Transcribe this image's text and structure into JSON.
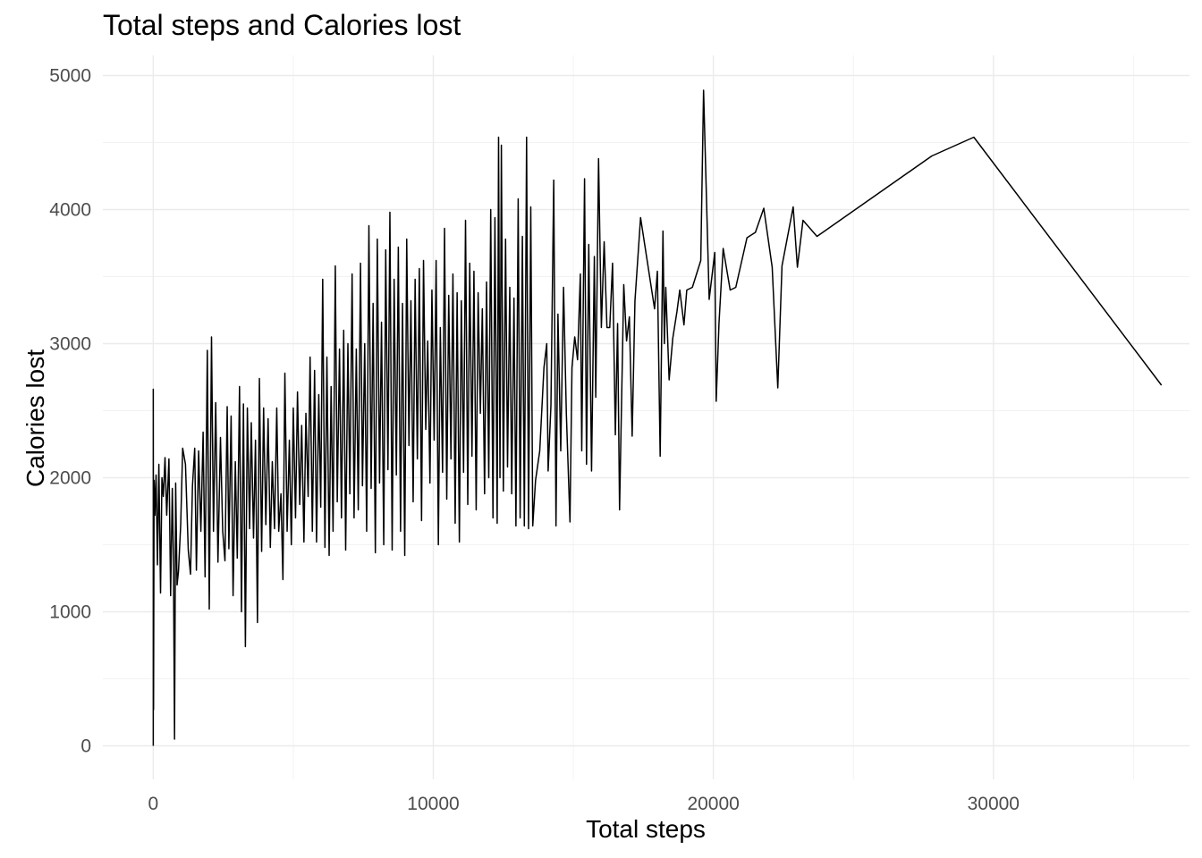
{
  "chart_data": {
    "type": "line",
    "title": "Total steps and Calories lost",
    "xlabel": "Total steps",
    "ylabel": "Calories lost",
    "xlim": [
      -1800,
      37000
    ],
    "ylim": [
      -250,
      5150
    ],
    "x_ticks": [
      0,
      10000,
      20000,
      30000
    ],
    "y_ticks": [
      0,
      1000,
      2000,
      3000,
      4000,
      5000
    ],
    "x_tick_labels": [
      "0",
      "10000",
      "20000",
      "30000"
    ],
    "y_tick_labels": [
      "0",
      "1000",
      "2000",
      "3000",
      "4000",
      "5000"
    ],
    "grid": true,
    "legend": "none",
    "line_color": "#000000",
    "series": [
      {
        "values": [
          [
            0,
            0
          ],
          [
            0,
            2660
          ],
          [
            10,
            270
          ],
          [
            30,
            1980
          ],
          [
            60,
            1720
          ],
          [
            100,
            2020
          ],
          [
            150,
            1350
          ],
          [
            200,
            2100
          ],
          [
            260,
            1140
          ],
          [
            310,
            2000
          ],
          [
            360,
            1860
          ],
          [
            420,
            2150
          ],
          [
            480,
            1720
          ],
          [
            560,
            2140
          ],
          [
            620,
            1120
          ],
          [
            680,
            1920
          ],
          [
            720,
            1400
          ],
          [
            760,
            50
          ],
          [
            800,
            1960
          ],
          [
            850,
            1200
          ],
          [
            900,
            1300
          ],
          [
            980,
            1650
          ],
          [
            1050,
            2220
          ],
          [
            1150,
            2100
          ],
          [
            1250,
            1460
          ],
          [
            1330,
            1280
          ],
          [
            1400,
            1940
          ],
          [
            1480,
            2220
          ],
          [
            1540,
            1310
          ],
          [
            1620,
            2200
          ],
          [
            1700,
            1600
          ],
          [
            1780,
            2340
          ],
          [
            1850,
            1260
          ],
          [
            1930,
            2950
          ],
          [
            2000,
            1020
          ],
          [
            2080,
            3050
          ],
          [
            2150,
            1600
          ],
          [
            2230,
            2560
          ],
          [
            2310,
            1370
          ],
          [
            2400,
            2300
          ],
          [
            2480,
            1600
          ],
          [
            2560,
            1380
          ],
          [
            2640,
            2530
          ],
          [
            2700,
            1470
          ],
          [
            2780,
            2460
          ],
          [
            2850,
            1120
          ],
          [
            2930,
            2120
          ],
          [
            3000,
            1400
          ],
          [
            3080,
            2680
          ],
          [
            3150,
            1000
          ],
          [
            3220,
            2550
          ],
          [
            3290,
            740
          ],
          [
            3360,
            2520
          ],
          [
            3440,
            1620
          ],
          [
            3500,
            2410
          ],
          [
            3580,
            1550
          ],
          [
            3650,
            2280
          ],
          [
            3720,
            920
          ],
          [
            3790,
            2740
          ],
          [
            3870,
            1450
          ],
          [
            3940,
            2520
          ],
          [
            4020,
            1650
          ],
          [
            4100,
            2440
          ],
          [
            4180,
            1480
          ],
          [
            4250,
            2120
          ],
          [
            4330,
            1620
          ],
          [
            4410,
            2520
          ],
          [
            4480,
            1600
          ],
          [
            4560,
            1880
          ],
          [
            4630,
            1240
          ],
          [
            4700,
            2780
          ],
          [
            4780,
            1600
          ],
          [
            4860,
            2280
          ],
          [
            4930,
            1500
          ],
          [
            5000,
            2520
          ],
          [
            5080,
            1700
          ],
          [
            5150,
            2640
          ],
          [
            5230,
            1800
          ],
          [
            5300,
            2390
          ],
          [
            5380,
            1520
          ],
          [
            5450,
            2480
          ],
          [
            5530,
            1860
          ],
          [
            5600,
            2900
          ],
          [
            5680,
            1600
          ],
          [
            5760,
            2800
          ],
          [
            5830,
            1520
          ],
          [
            5910,
            2620
          ],
          [
            5980,
            1780
          ],
          [
            6050,
            3480
          ],
          [
            6130,
            1480
          ],
          [
            6200,
            2900
          ],
          [
            6280,
            1420
          ],
          [
            6350,
            2680
          ],
          [
            6420,
            1600
          ],
          [
            6500,
            3580
          ],
          [
            6570,
            1820
          ],
          [
            6650,
            2960
          ],
          [
            6720,
            1700
          ],
          [
            6800,
            3100
          ],
          [
            6870,
            1460
          ],
          [
            6950,
            3000
          ],
          [
            7020,
            1880
          ],
          [
            7100,
            3520
          ],
          [
            7170,
            1700
          ],
          [
            7250,
            2960
          ],
          [
            7320,
            1760
          ],
          [
            7400,
            3600
          ],
          [
            7470,
            1940
          ],
          [
            7550,
            3000
          ],
          [
            7620,
            1600
          ],
          [
            7700,
            3880
          ],
          [
            7780,
            1920
          ],
          [
            7850,
            3300
          ],
          [
            7930,
            1440
          ],
          [
            8000,
            3780
          ],
          [
            8080,
            1960
          ],
          [
            8150,
            3160
          ],
          [
            8230,
            1500
          ],
          [
            8300,
            3700
          ],
          [
            8380,
            2060
          ],
          [
            8450,
            3980
          ],
          [
            8530,
            1460
          ],
          [
            8600,
            3480
          ],
          [
            8680,
            2020
          ],
          [
            8750,
            3720
          ],
          [
            8830,
            1600
          ],
          [
            8900,
            3300
          ],
          [
            8980,
            1420
          ],
          [
            9050,
            3780
          ],
          [
            9130,
            2240
          ],
          [
            9200,
            3320
          ],
          [
            9280,
            1820
          ],
          [
            9350,
            3480
          ],
          [
            9430,
            2140
          ],
          [
            9500,
            3560
          ],
          [
            9580,
            1680
          ],
          [
            9650,
            3620
          ],
          [
            9730,
            2360
          ],
          [
            9800,
            3020
          ],
          [
            9880,
            1960
          ],
          [
            9950,
            3400
          ],
          [
            10030,
            2280
          ],
          [
            10100,
            3620
          ],
          [
            10180,
            1500
          ],
          [
            10250,
            3120
          ],
          [
            10330,
            2040
          ],
          [
            10400,
            3860
          ],
          [
            10480,
            1840
          ],
          [
            10550,
            3360
          ],
          [
            10630,
            2140
          ],
          [
            10700,
            3520
          ],
          [
            10780,
            1660
          ],
          [
            10850,
            3380
          ],
          [
            10930,
            1520
          ],
          [
            11000,
            3320
          ],
          [
            11080,
            2040
          ],
          [
            11150,
            3920
          ],
          [
            11230,
            1800
          ],
          [
            11300,
            3600
          ],
          [
            11380,
            2160
          ],
          [
            11450,
            3540
          ],
          [
            11530,
            1760
          ],
          [
            11600,
            3380
          ],
          [
            11680,
            2480
          ],
          [
            11750,
            3260
          ],
          [
            11830,
            1880
          ],
          [
            11900,
            3460
          ],
          [
            11980,
            2000
          ],
          [
            12050,
            4000
          ],
          [
            12130,
            1700
          ],
          [
            12200,
            3940
          ],
          [
            12280,
            1660
          ],
          [
            12330,
            4540
          ],
          [
            12380,
            2000
          ],
          [
            12430,
            4480
          ],
          [
            12500,
            1900
          ],
          [
            12580,
            3780
          ],
          [
            12650,
            2080
          ],
          [
            12730,
            3420
          ],
          [
            12800,
            1880
          ],
          [
            12880,
            3340
          ],
          [
            12950,
            1640
          ],
          [
            13030,
            4080
          ],
          [
            13100,
            1700
          ],
          [
            13180,
            3800
          ],
          [
            13250,
            1640
          ],
          [
            13330,
            4540
          ],
          [
            13400,
            1620
          ],
          [
            13480,
            4020
          ],
          [
            13550,
            1640
          ],
          [
            13650,
            1980
          ],
          [
            13800,
            2200
          ],
          [
            13950,
            2820
          ],
          [
            14050,
            3000
          ],
          [
            14100,
            2050
          ],
          [
            14200,
            2540
          ],
          [
            14300,
            4220
          ],
          [
            14380,
            1640
          ],
          [
            14450,
            3220
          ],
          [
            14550,
            2200
          ],
          [
            14650,
            3420
          ],
          [
            14750,
            2480
          ],
          [
            14880,
            1670
          ],
          [
            14950,
            2820
          ],
          [
            15050,
            3050
          ],
          [
            15150,
            2880
          ],
          [
            15250,
            3520
          ],
          [
            15300,
            2200
          ],
          [
            15400,
            4230
          ],
          [
            15470,
            2100
          ],
          [
            15550,
            3740
          ],
          [
            15650,
            2050
          ],
          [
            15750,
            3650
          ],
          [
            15800,
            2600
          ],
          [
            15900,
            4380
          ],
          [
            16000,
            3120
          ],
          [
            16100,
            3760
          ],
          [
            16200,
            3120
          ],
          [
            16300,
            3120
          ],
          [
            16400,
            3600
          ],
          [
            16500,
            2320
          ],
          [
            16580,
            3150
          ],
          [
            16650,
            1760
          ],
          [
            16800,
            3440
          ],
          [
            16900,
            3020
          ],
          [
            17000,
            3200
          ],
          [
            17100,
            2310
          ],
          [
            17200,
            3320
          ],
          [
            17400,
            3940
          ],
          [
            17900,
            3260
          ],
          [
            18000,
            3540
          ],
          [
            18100,
            2160
          ],
          [
            18200,
            3840
          ],
          [
            18250,
            3000
          ],
          [
            18300,
            3420
          ],
          [
            18420,
            2730
          ],
          [
            18550,
            3040
          ],
          [
            18700,
            3240
          ],
          [
            18800,
            3400
          ],
          [
            18950,
            3140
          ],
          [
            19050,
            3400
          ],
          [
            19250,
            3420
          ],
          [
            19550,
            3620
          ],
          [
            19650,
            4890
          ],
          [
            19850,
            3330
          ],
          [
            20050,
            3680
          ],
          [
            20100,
            2570
          ],
          [
            20200,
            3150
          ],
          [
            20350,
            3710
          ],
          [
            20600,
            3400
          ],
          [
            20800,
            3420
          ],
          [
            21200,
            3790
          ],
          [
            21500,
            3830
          ],
          [
            21800,
            4010
          ],
          [
            22100,
            3570
          ],
          [
            22300,
            2670
          ],
          [
            22450,
            3580
          ],
          [
            22850,
            4020
          ],
          [
            23000,
            3570
          ],
          [
            23200,
            3920
          ],
          [
            23700,
            3800
          ],
          [
            27800,
            4400
          ],
          [
            29300,
            4540
          ],
          [
            36000,
            2690
          ]
        ]
      }
    ]
  }
}
